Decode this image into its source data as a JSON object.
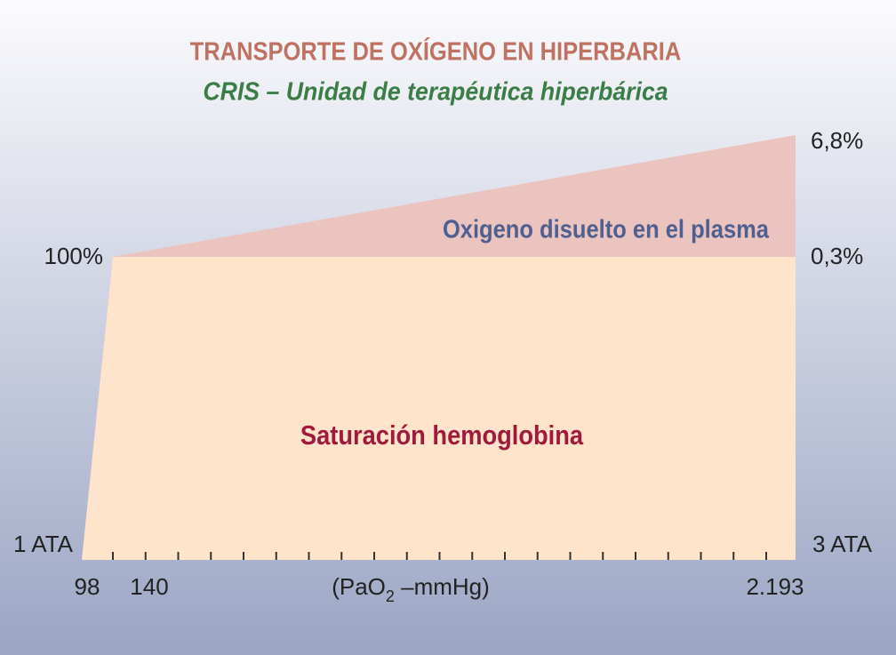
{
  "title": "TRANSPORTE DE OXÍGENO EN HIPERBARIA",
  "subtitle": "CRIS – Unidad de terapéutica hiperbárica",
  "regions": {
    "plasma": "Oxigeno disuelto en el plasma",
    "hemoglobin": "Saturación hemoglobina"
  },
  "left_labels": {
    "top": "100%",
    "bottom": "1 ATA"
  },
  "right_labels": {
    "top": "6,8%",
    "middle": "0,3%",
    "bottom": "3 ATA"
  },
  "x_labels": {
    "start": "98",
    "second": "140",
    "end": "2.193"
  },
  "x_axis_label": {
    "prefix": "(PaO",
    "subscript": "2",
    "suffix": " –mmHg)"
  }
}
